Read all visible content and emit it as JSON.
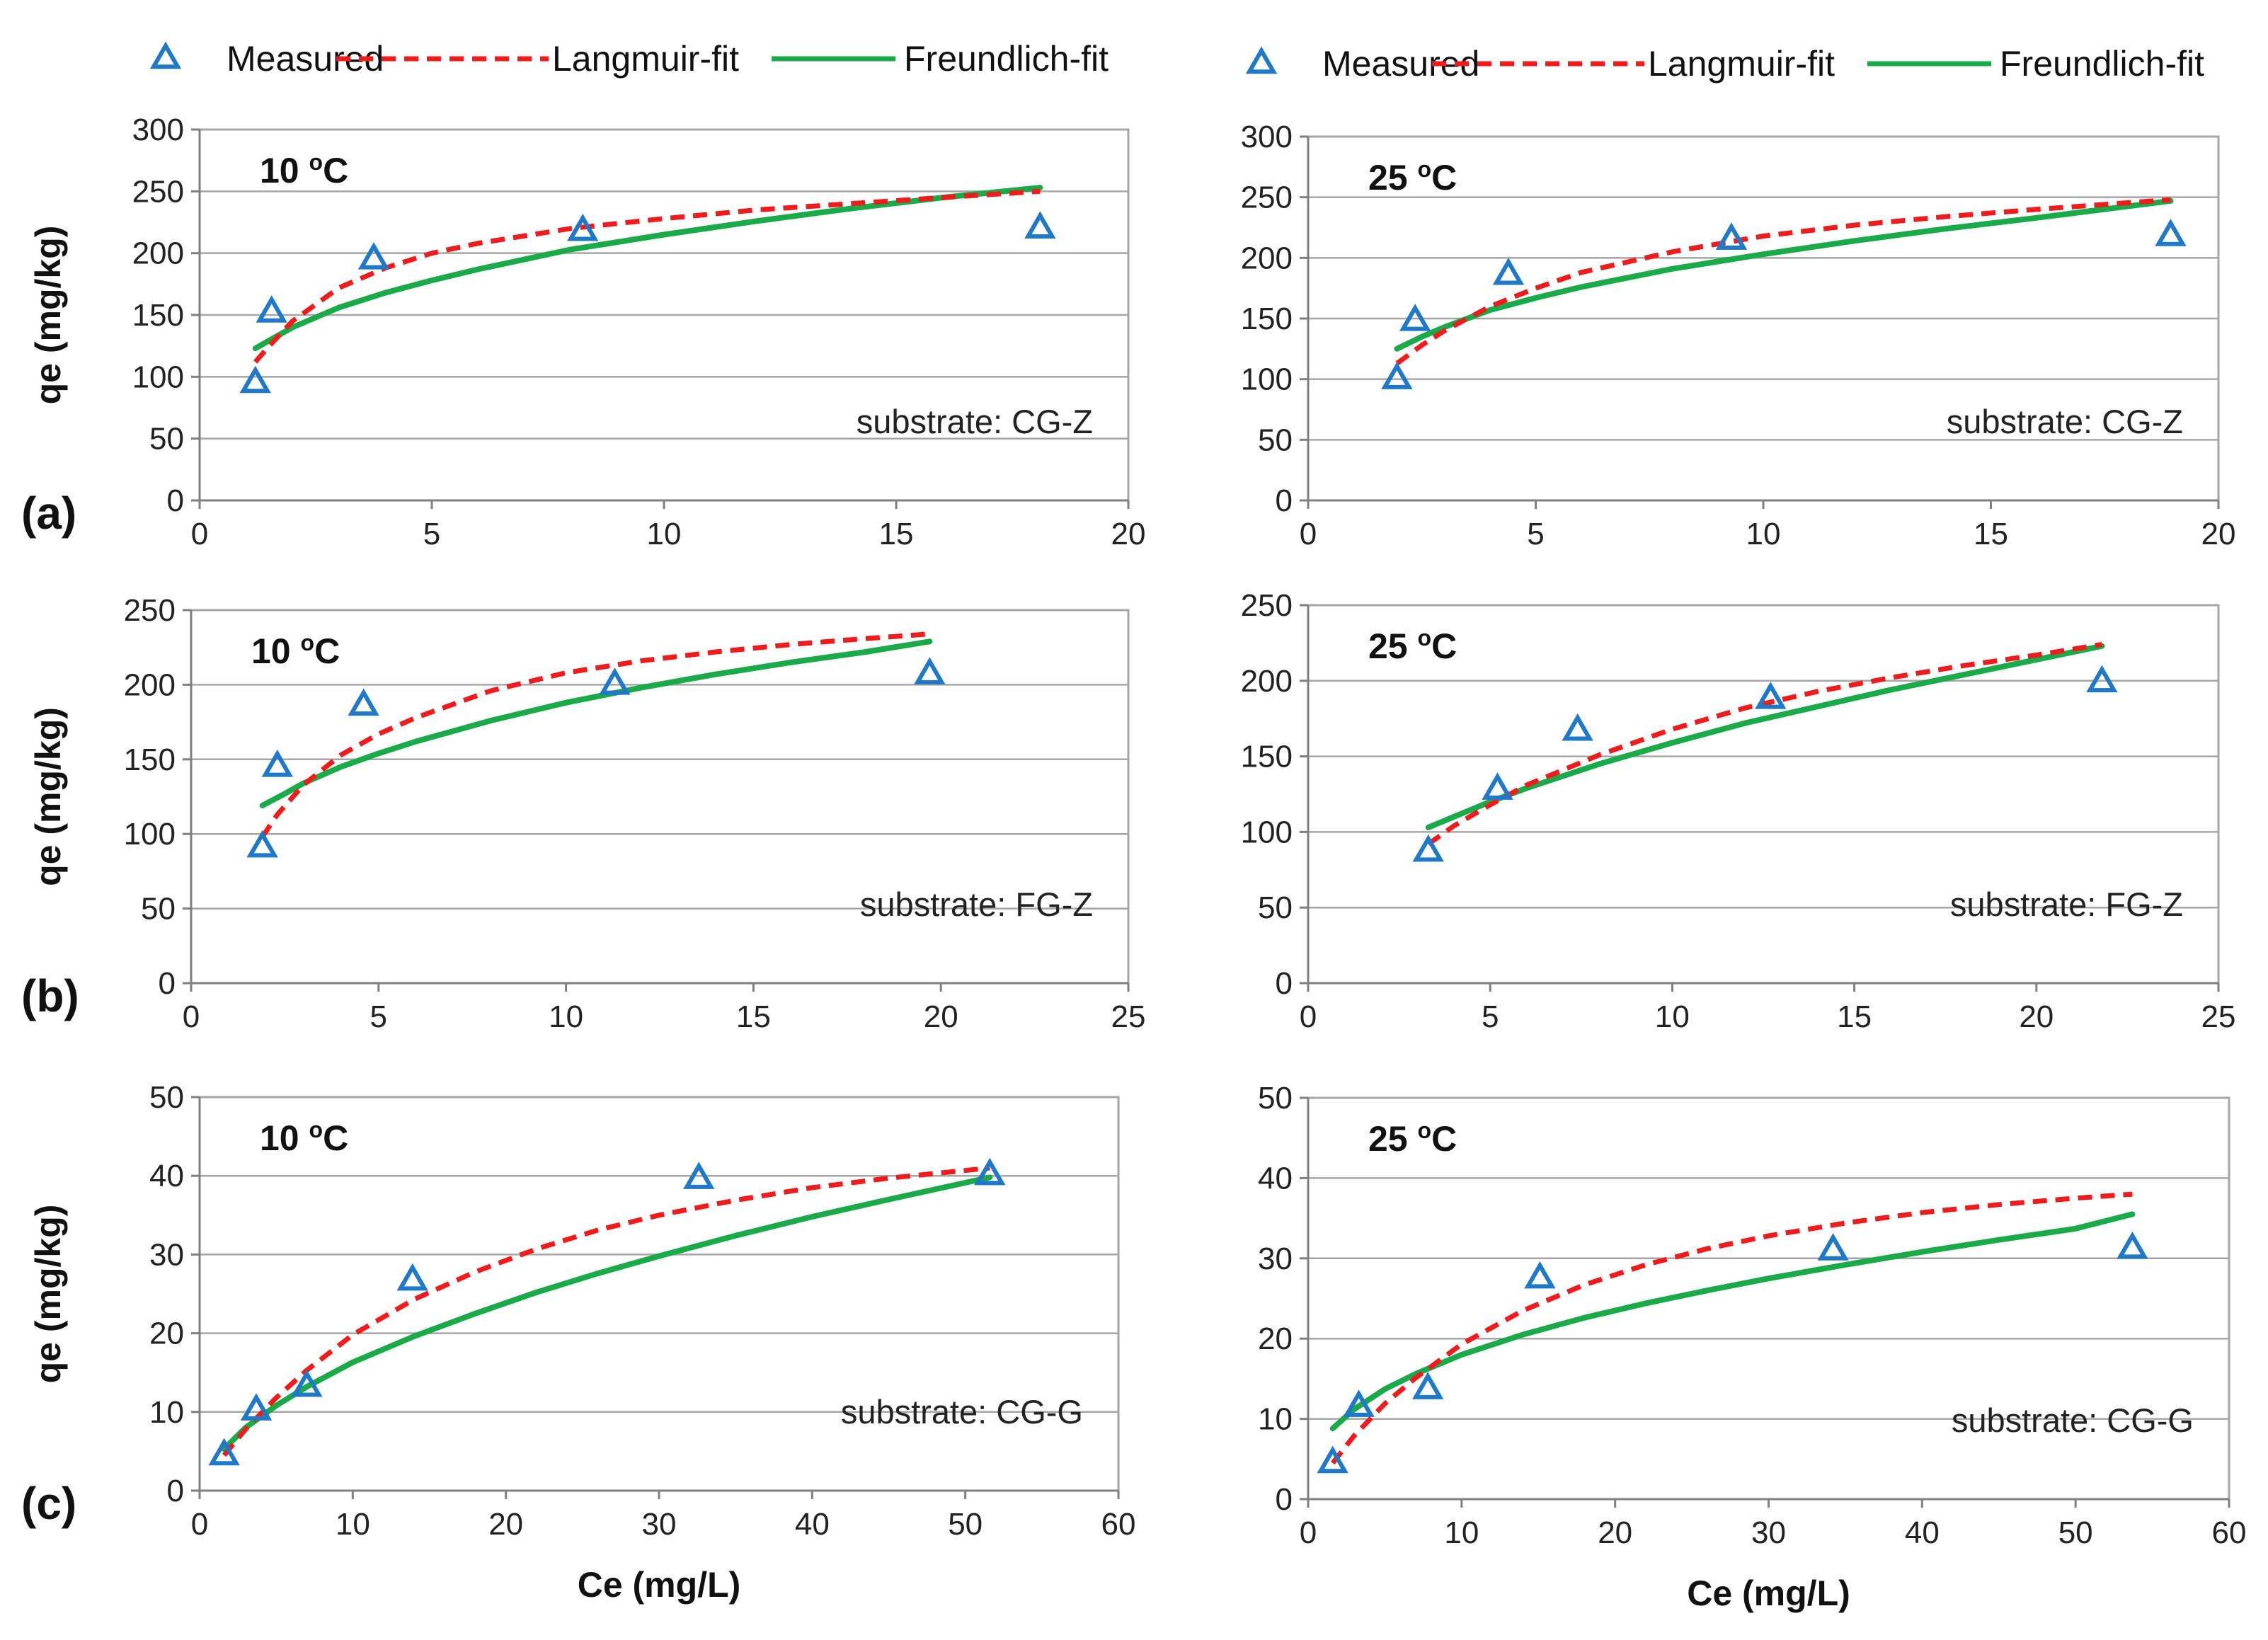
{
  "legend": [
    {
      "label": "Measured",
      "kind": "marker",
      "color": "#1f78c8"
    },
    {
      "label": "Langmuir-fit",
      "kind": "dashed",
      "color": "#ee1c1c"
    },
    {
      "label": "Freundlich-fit",
      "kind": "solid",
      "color": "#1aaa4a"
    }
  ],
  "colors": {
    "measured": "#1f78c8",
    "langmuir": "#ee1c1c",
    "freundlich": "#1aaa4a",
    "grid": "#a6a6a6",
    "axis": "#7f7f7f"
  },
  "row_labels": [
    "(a)",
    "(b)",
    "(c)"
  ],
  "chart_data": [
    {
      "type": "scatter+line",
      "row_label": "(a)",
      "temperature": "10 ",
      "temp_sup": "o",
      "temp_unit": "C",
      "substrate": "substrate:  CG-Z",
      "ylabel": "qe (mg/kg)",
      "xlabel": "",
      "xlim": [
        0,
        20
      ],
      "ylim": [
        0,
        300
      ],
      "xticks": [
        "0",
        "5",
        "10",
        "15",
        "20"
      ],
      "yticks": [
        "0",
        "50",
        "100",
        "150",
        "200",
        "250",
        "300"
      ],
      "measured": [
        [
          1.2,
          95
        ],
        [
          1.55,
          152
        ],
        [
          3.75,
          195
        ],
        [
          8.25,
          218
        ],
        [
          18.1,
          220
        ]
      ],
      "langmuir": [
        [
          1.2,
          112
        ],
        [
          1.5,
          125
        ],
        [
          2,
          145
        ],
        [
          3,
          172
        ],
        [
          4,
          188
        ],
        [
          5,
          200
        ],
        [
          6,
          208
        ],
        [
          8,
          220
        ],
        [
          10,
          228
        ],
        [
          12,
          235
        ],
        [
          14,
          240
        ],
        [
          16,
          245
        ],
        [
          18.1,
          250
        ]
      ],
      "freundlich": [
        [
          1.2,
          123
        ],
        [
          2,
          140
        ],
        [
          3,
          156
        ],
        [
          4,
          168
        ],
        [
          5,
          178
        ],
        [
          6,
          187
        ],
        [
          8,
          203
        ],
        [
          10,
          215
        ],
        [
          12,
          226
        ],
        [
          14,
          236
        ],
        [
          16,
          245
        ],
        [
          18.1,
          253
        ]
      ]
    },
    {
      "type": "scatter+line",
      "row_label": "",
      "temperature": "25 ",
      "temp_sup": "o",
      "temp_unit": "C",
      "substrate": "substrate:  CG-Z",
      "ylabel": "",
      "xlabel": "",
      "xlim": [
        0,
        20
      ],
      "ylim": [
        0,
        300
      ],
      "xticks": [
        "0",
        "5",
        "10",
        "15",
        "20"
      ],
      "yticks": [
        "0",
        "50",
        "100",
        "150",
        "200",
        "250",
        "300"
      ],
      "measured": [
        [
          1.95,
          100
        ],
        [
          2.35,
          148
        ],
        [
          4.4,
          186
        ],
        [
          9.3,
          215
        ],
        [
          18.95,
          218
        ]
      ],
      "langmuir": [
        [
          1.95,
          113
        ],
        [
          2.5,
          128
        ],
        [
          3,
          140
        ],
        [
          4,
          160
        ],
        [
          5,
          175
        ],
        [
          6,
          188
        ],
        [
          8,
          205
        ],
        [
          10,
          218
        ],
        [
          12,
          227
        ],
        [
          14,
          234
        ],
        [
          16,
          240
        ],
        [
          18.95,
          248
        ]
      ],
      "freundlich": [
        [
          1.95,
          125
        ],
        [
          2.5,
          135
        ],
        [
          3,
          143
        ],
        [
          4,
          157
        ],
        [
          5,
          167
        ],
        [
          6,
          176
        ],
        [
          8,
          191
        ],
        [
          10,
          203
        ],
        [
          12,
          214
        ],
        [
          14,
          224
        ],
        [
          16,
          233
        ],
        [
          18.95,
          247
        ]
      ]
    },
    {
      "type": "scatter+line",
      "row_label": "(b)",
      "temperature": "10 ",
      "temp_sup": "o",
      "temp_unit": "C",
      "substrate": "substrate:  FG-Z",
      "ylabel": "qe (mg/kg)",
      "xlabel": "",
      "xlim": [
        0,
        25
      ],
      "ylim": [
        0,
        250
      ],
      "xticks": [
        "0",
        "5",
        "10",
        "15",
        "20",
        "25"
      ],
      "yticks": [
        "0",
        "50",
        "100",
        "150",
        "200",
        "250"
      ],
      "measured": [
        [
          1.9,
          91
        ],
        [
          2.3,
          145
        ],
        [
          4.6,
          186
        ],
        [
          11.3,
          200
        ],
        [
          19.7,
          207
        ]
      ],
      "langmuir": [
        [
          1.9,
          98
        ],
        [
          2.3,
          113
        ],
        [
          3,
          133
        ],
        [
          4,
          153
        ],
        [
          5,
          167
        ],
        [
          6,
          178
        ],
        [
          8,
          196
        ],
        [
          10,
          208
        ],
        [
          12,
          216
        ],
        [
          14,
          222
        ],
        [
          16,
          227
        ],
        [
          18,
          231
        ],
        [
          19.7,
          234
        ]
      ],
      "freundlich": [
        [
          1.9,
          119
        ],
        [
          2.5,
          127
        ],
        [
          3,
          134
        ],
        [
          4,
          145
        ],
        [
          5,
          154
        ],
        [
          6,
          162
        ],
        [
          8,
          176
        ],
        [
          10,
          188
        ],
        [
          12,
          198
        ],
        [
          14,
          207
        ],
        [
          16,
          215
        ],
        [
          18,
          222
        ],
        [
          19.7,
          229
        ]
      ]
    },
    {
      "type": "scatter+line",
      "row_label": "",
      "temperature": "25 ",
      "temp_sup": "o",
      "temp_unit": "C",
      "substrate": "substrate:  FG-Z",
      "ylabel": "",
      "xlabel": "",
      "xlim": [
        0,
        25
      ],
      "ylim": [
        0,
        250
      ],
      "xticks": [
        "0",
        "5",
        "10",
        "15",
        "20",
        "25"
      ],
      "yticks": [
        "0",
        "50",
        "100",
        "150",
        "200",
        "250"
      ],
      "measured": [
        [
          3.3,
          87
        ],
        [
          5.2,
          128
        ],
        [
          7.4,
          167
        ],
        [
          12.7,
          188
        ],
        [
          21.8,
          199
        ]
      ],
      "langmuir": [
        [
          3.3,
          92
        ],
        [
          4,
          104
        ],
        [
          5,
          118
        ],
        [
          6,
          131
        ],
        [
          8,
          151
        ],
        [
          10,
          168
        ],
        [
          12,
          182
        ],
        [
          14,
          193
        ],
        [
          16,
          202
        ],
        [
          18,
          210
        ],
        [
          20,
          217
        ],
        [
          21.8,
          224
        ]
      ],
      "freundlich": [
        [
          3.3,
          103
        ],
        [
          4,
          110
        ],
        [
          5,
          120
        ],
        [
          6,
          129
        ],
        [
          8,
          145
        ],
        [
          10,
          159
        ],
        [
          12,
          172
        ],
        [
          14,
          183
        ],
        [
          16,
          194
        ],
        [
          18,
          204
        ],
        [
          20,
          214
        ],
        [
          21.8,
          223
        ]
      ]
    },
    {
      "type": "scatter+line",
      "row_label": "(c)",
      "temperature": "10 ",
      "temp_sup": "o",
      "temp_unit": "C",
      "substrate": "substrate:  CG-G",
      "ylabel": "qe (mg/kg)",
      "xlabel": "Ce (mg/L)",
      "xlim": [
        0,
        60
      ],
      "ylim": [
        0,
        50
      ],
      "xticks": [
        "0",
        "10",
        "20",
        "30",
        "40",
        "50",
        "60"
      ],
      "yticks": [
        "0",
        "10",
        "20",
        "30",
        "40",
        "50"
      ],
      "measured": [
        [
          1.6,
          4.5
        ],
        [
          3.7,
          10.2
        ],
        [
          7.0,
          13.2
        ],
        [
          13.9,
          26.7
        ],
        [
          32.6,
          39.6
        ],
        [
          51.6,
          40.1
        ]
      ],
      "langmuir": [
        [
          1.6,
          4.5
        ],
        [
          3,
          7.8
        ],
        [
          5,
          11.8
        ],
        [
          7,
          15.3
        ],
        [
          10,
          19.8
        ],
        [
          14,
          24.3
        ],
        [
          18,
          27.8
        ],
        [
          22,
          30.7
        ],
        [
          26,
          33.1
        ],
        [
          30,
          35.0
        ],
        [
          35,
          36.9
        ],
        [
          40,
          38.5
        ],
        [
          45,
          39.7
        ],
        [
          51.6,
          41.0
        ]
      ],
      "freundlich": [
        [
          1.6,
          5.3
        ],
        [
          3,
          8.0
        ],
        [
          5,
          10.8
        ],
        [
          7,
          13.2
        ],
        [
          10,
          16.3
        ],
        [
          14,
          19.6
        ],
        [
          18,
          22.5
        ],
        [
          22,
          25.2
        ],
        [
          26,
          27.6
        ],
        [
          30,
          29.8
        ],
        [
          35,
          32.4
        ],
        [
          40,
          34.8
        ],
        [
          45,
          37.0
        ],
        [
          51.6,
          39.8
        ]
      ]
    },
    {
      "type": "scatter+line",
      "row_label": "",
      "temperature": "25 ",
      "temp_sup": "o",
      "temp_unit": "C",
      "substrate": "substrate:  CG-G",
      "ylabel": "",
      "xlabel": "Ce (mg/L)",
      "xlim": [
        0,
        60
      ],
      "ylim": [
        0,
        50
      ],
      "xticks": [
        "0",
        "10",
        "20",
        "30",
        "40",
        "50",
        "60"
      ],
      "yticks": [
        "0",
        "10",
        "20",
        "30",
        "40",
        "50"
      ],
      "measured": [
        [
          1.6,
          4.5
        ],
        [
          3.3,
          11.5
        ],
        [
          7.8,
          13.7
        ],
        [
          15.1,
          27.5
        ],
        [
          34.2,
          31.0
        ],
        [
          53.7,
          31.2
        ]
      ],
      "langmuir": [
        [
          1.6,
          4.5
        ],
        [
          3,
          7.9
        ],
        [
          5,
          11.9
        ],
        [
          7,
          15.1
        ],
        [
          10,
          19.3
        ],
        [
          14,
          23.5
        ],
        [
          18,
          26.7
        ],
        [
          22,
          29.2
        ],
        [
          26,
          31.2
        ],
        [
          30,
          32.8
        ],
        [
          35,
          34.4
        ],
        [
          40,
          35.7
        ],
        [
          45,
          36.7
        ],
        [
          50,
          37.5
        ],
        [
          53.7,
          38.0
        ]
      ],
      "freundlich": [
        [
          1.6,
          8.8
        ],
        [
          3,
          11.2
        ],
        [
          5,
          13.7
        ],
        [
          7,
          15.6
        ],
        [
          10,
          18.0
        ],
        [
          14,
          20.5
        ],
        [
          18,
          22.6
        ],
        [
          22,
          24.4
        ],
        [
          26,
          26.0
        ],
        [
          30,
          27.5
        ],
        [
          35,
          29.2
        ],
        [
          40,
          30.8
        ],
        [
          45,
          32.3
        ],
        [
          50,
          33.7
        ],
        [
          53.7,
          35.5
        ]
      ]
    }
  ]
}
